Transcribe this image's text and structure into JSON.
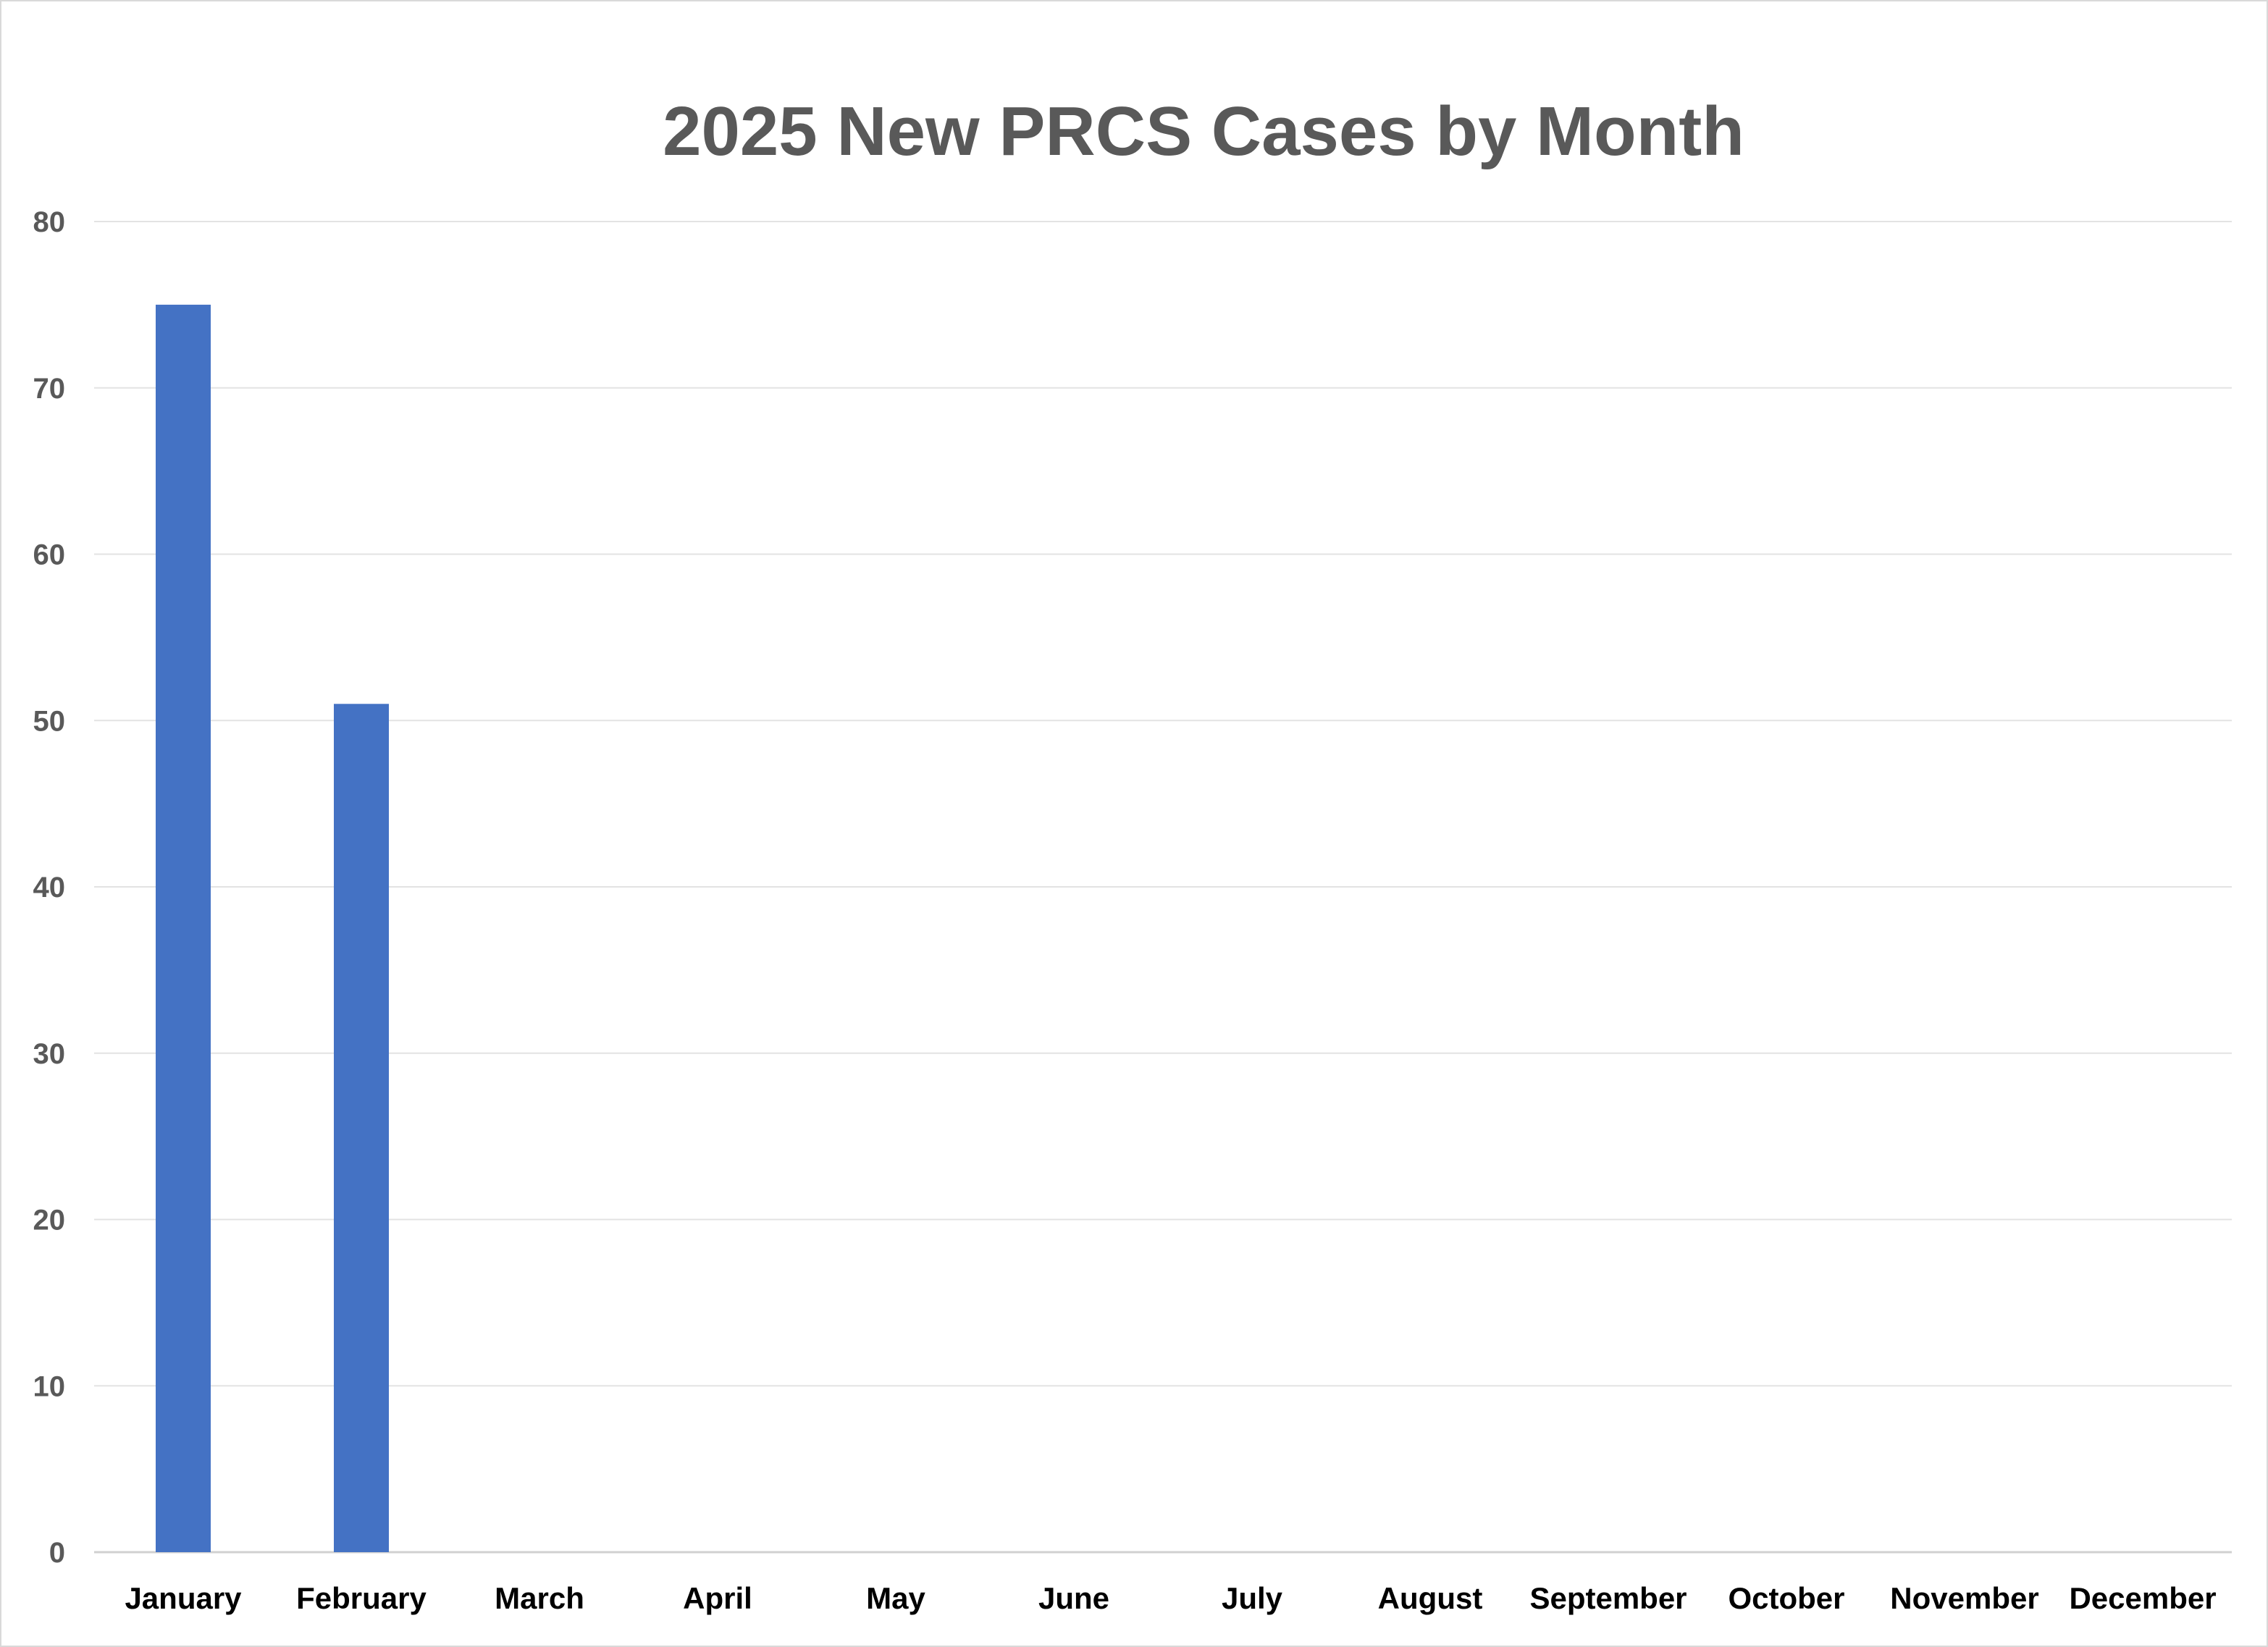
{
  "chart_data": {
    "type": "bar",
    "title": "2025 New PRCS Cases by Month",
    "categories": [
      "January",
      "February",
      "March",
      "April",
      "May",
      "June",
      "July",
      "August",
      "September",
      "October",
      "November",
      "December"
    ],
    "values": [
      75,
      51,
      null,
      null,
      null,
      null,
      null,
      null,
      null,
      null,
      null,
      null
    ],
    "xlabel": "",
    "ylabel": "",
    "ylim": [
      0,
      80
    ],
    "yticks": [
      0,
      10,
      20,
      30,
      40,
      50,
      60,
      70,
      80
    ],
    "grid": true,
    "legend": "none",
    "colors": {
      "bar": "#4472C4",
      "title": "#595959",
      "gridline": "#E3E3E3"
    }
  }
}
